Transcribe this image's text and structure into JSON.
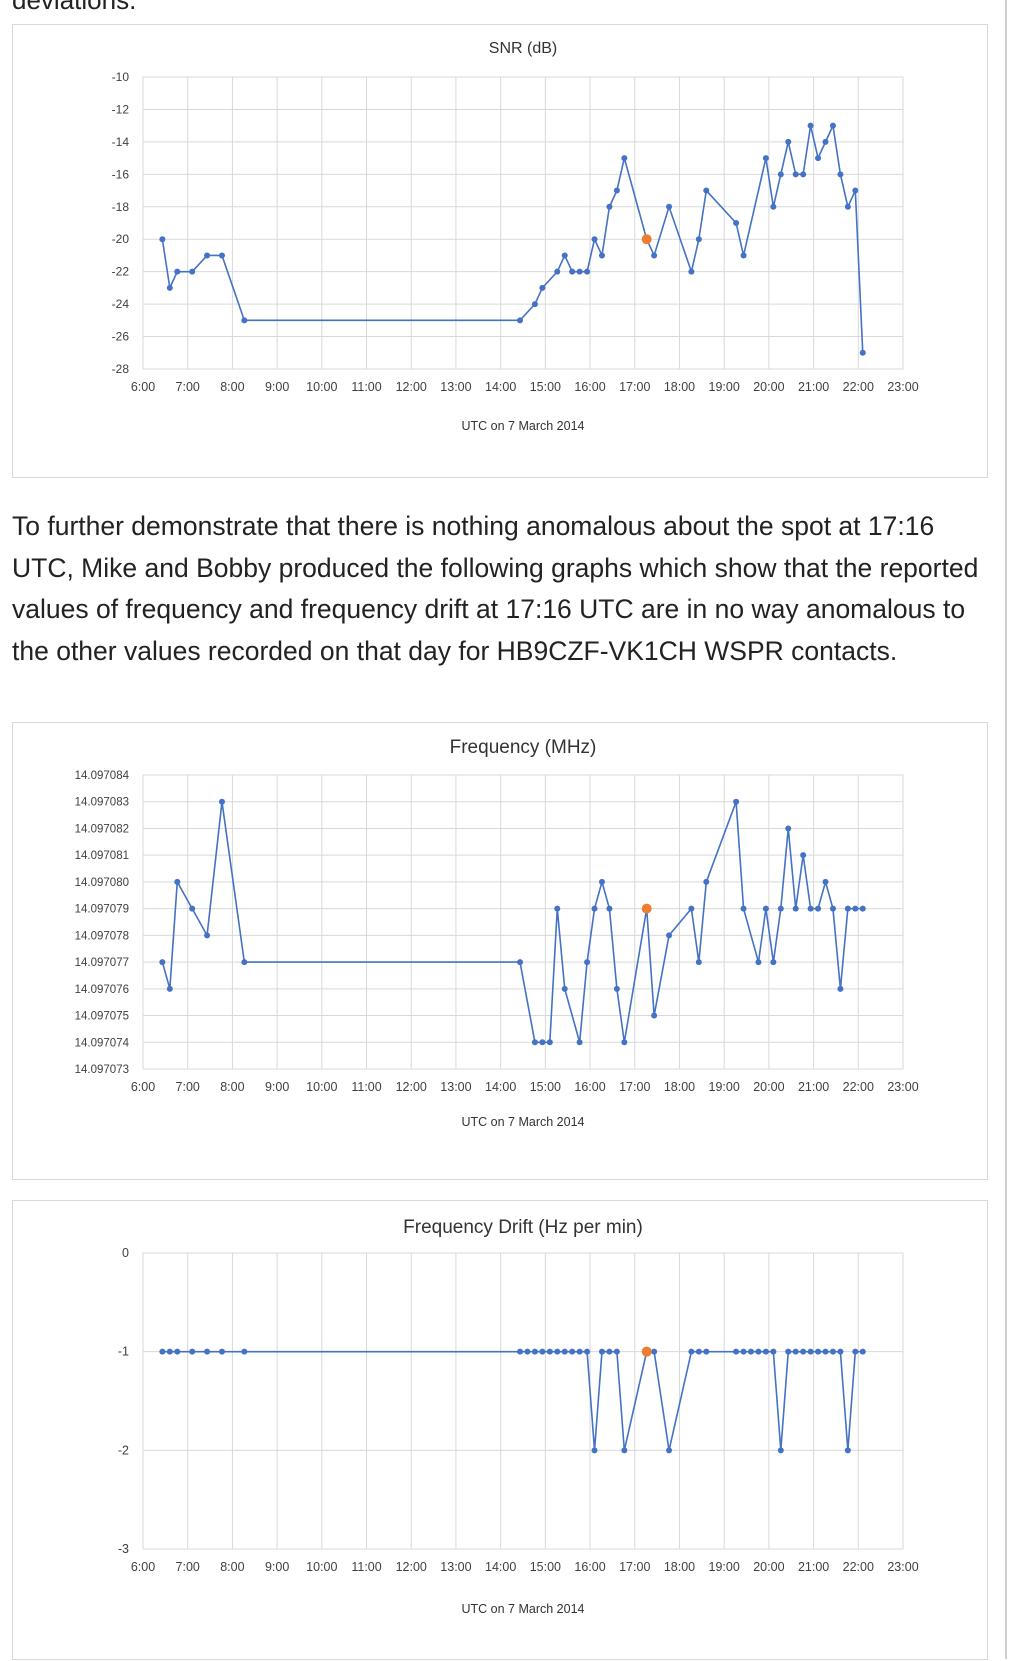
{
  "page": {
    "top_fragment": "deviations.",
    "paragraph": "To further demonstrate that there is nothing anomalous about the spot at 17:16 UTC, Mike and Bobby produced the following graphs which show that the reported values of frequency and frequency drift at 17:16 UTC are in no way anomalous to the other values recorded on that day for HB9CZF-VK1CH WSPR contacts."
  },
  "colors": {
    "series": "#4472c4",
    "highlight": "#ed7d31",
    "grid": "#d9d9d9",
    "axis_text": "#404040"
  },
  "chart_data": [
    {
      "type": "line",
      "title": "SNR (dB)",
      "xlabel": "UTC on 7 March 2014",
      "ylabel": "",
      "x_ticks": [
        "6:00",
        "7:00",
        "8:00",
        "9:00",
        "10:00",
        "11:00",
        "12:00",
        "13:00",
        "14:00",
        "15:00",
        "16:00",
        "17:00",
        "18:00",
        "19:00",
        "20:00",
        "21:00",
        "22:00",
        "23:00"
      ],
      "y_ticks": [
        "-10",
        "-12",
        "-14",
        "-16",
        "-18",
        "-20",
        "-22",
        "-24",
        "-26",
        "-28"
      ],
      "xlim": [
        "6:00",
        "23:00"
      ],
      "ylim": [
        -28,
        -10
      ],
      "grid": true,
      "legend": "none",
      "highlight_point": {
        "x": "17:16",
        "y": -20
      },
      "series": [
        {
          "x": [
            "6:26",
            "6:36",
            "6:46",
            "7:06",
            "7:26",
            "7:46",
            "8:16",
            "14:26",
            "14:46",
            "14:56",
            "15:16",
            "15:26",
            "15:36",
            "15:46",
            "15:56",
            "16:06",
            "16:16",
            "16:26",
            "16:36",
            "16:46",
            "17:16",
            "17:26",
            "17:46",
            "18:16",
            "18:26",
            "18:36",
            "19:16",
            "19:26",
            "19:56",
            "20:06",
            "20:16",
            "20:26",
            "20:36",
            "20:46",
            "20:56",
            "21:06",
            "21:16",
            "21:26",
            "21:36",
            "21:46",
            "21:56",
            "22:06"
          ],
          "y": [
            -20,
            -23,
            -22,
            -22,
            -21,
            -21,
            -25,
            -25,
            -24,
            -23,
            -22,
            -21,
            -22,
            -22,
            -22,
            -20,
            -21,
            -18,
            -17,
            -15,
            -20,
            -21,
            -18,
            -22,
            -20,
            -17,
            -19,
            -21,
            -15,
            -18,
            -16,
            -14,
            -16,
            -16,
            -13,
            -15,
            -14,
            -13,
            -16,
            -18,
            -17,
            -27
          ]
        }
      ]
    },
    {
      "type": "line",
      "title": "Frequency (MHz)",
      "xlabel": "UTC on 7 March 2014",
      "ylabel": "",
      "x_ticks": [
        "6:00",
        "7:00",
        "8:00",
        "9:00",
        "10:00",
        "11:00",
        "12:00",
        "13:00",
        "14:00",
        "15:00",
        "16:00",
        "17:00",
        "18:00",
        "19:00",
        "20:00",
        "21:00",
        "22:00",
        "23:00"
      ],
      "y_ticks": [
        "14.097084",
        "14.097083",
        "14.097082",
        "14.097081",
        "14.097080",
        "14.097079",
        "14.097078",
        "14.097077",
        "14.097076",
        "14.097075",
        "14.097074",
        "14.097073"
      ],
      "xlim": [
        "6:00",
        "23:00"
      ],
      "ylim": [
        14.097073,
        14.097084
      ],
      "grid": true,
      "legend": "none",
      "highlight_point": {
        "x": "17:16",
        "y": 14.097079
      },
      "series": [
        {
          "x": [
            "6:26",
            "6:36",
            "6:46",
            "7:06",
            "7:26",
            "7:46",
            "8:16",
            "14:26",
            "14:46",
            "14:56",
            "15:06",
            "15:16",
            "15:26",
            "15:46",
            "15:56",
            "16:06",
            "16:16",
            "16:26",
            "16:36",
            "16:46",
            "17:16",
            "17:26",
            "17:46",
            "18:16",
            "18:26",
            "18:36",
            "19:16",
            "19:26",
            "19:46",
            "19:56",
            "20:06",
            "20:16",
            "20:26",
            "20:36",
            "20:46",
            "20:56",
            "21:06",
            "21:16",
            "21:26",
            "21:36",
            "21:46",
            "21:56",
            "22:06"
          ],
          "y": [
            14.097077,
            14.097076,
            14.09708,
            14.097079,
            14.097078,
            14.097083,
            14.097077,
            14.097077,
            14.097074,
            14.097074,
            14.097074,
            14.097079,
            14.097076,
            14.097074,
            14.097077,
            14.097079,
            14.09708,
            14.097079,
            14.097076,
            14.097074,
            14.097079,
            14.097075,
            14.097078,
            14.097079,
            14.097077,
            14.09708,
            14.097083,
            14.097079,
            14.097077,
            14.097079,
            14.097077,
            14.097079,
            14.097082,
            14.097079,
            14.097081,
            14.097079,
            14.097079,
            14.09708,
            14.097079,
            14.097076,
            14.097079,
            14.097079,
            14.097079
          ]
        }
      ]
    },
    {
      "type": "line",
      "title": "Frequency Drift (Hz per min)",
      "xlabel": "UTC on 7 March 2014",
      "ylabel": "",
      "x_ticks": [
        "6:00",
        "7:00",
        "8:00",
        "9:00",
        "10:00",
        "11:00",
        "12:00",
        "13:00",
        "14:00",
        "15:00",
        "16:00",
        "17:00",
        "18:00",
        "19:00",
        "20:00",
        "21:00",
        "22:00",
        "23:00"
      ],
      "y_ticks": [
        "0",
        "-1",
        "-2",
        "-3"
      ],
      "xlim": [
        "6:00",
        "23:00"
      ],
      "ylim": [
        -3,
        0
      ],
      "grid": true,
      "legend": "none",
      "highlight_point": {
        "x": "17:16",
        "y": -1
      },
      "series": [
        {
          "x": [
            "6:26",
            "6:36",
            "6:46",
            "7:06",
            "7:26",
            "7:46",
            "8:16",
            "14:26",
            "14:36",
            "14:46",
            "14:56",
            "15:06",
            "15:16",
            "15:26",
            "15:36",
            "15:46",
            "15:56",
            "16:06",
            "16:16",
            "16:26",
            "16:36",
            "16:46",
            "17:16",
            "17:26",
            "17:46",
            "18:16",
            "18:26",
            "18:36",
            "19:16",
            "19:26",
            "19:36",
            "19:46",
            "19:56",
            "20:06",
            "20:16",
            "20:26",
            "20:36",
            "20:46",
            "20:56",
            "21:06",
            "21:16",
            "21:26",
            "21:36",
            "21:46",
            "21:56",
            "22:06"
          ],
          "y": [
            -1,
            -1,
            -1,
            -1,
            -1,
            -1,
            -1,
            -1,
            -1,
            -1,
            -1,
            -1,
            -1,
            -1,
            -1,
            -1,
            -1,
            -2,
            -1,
            -1,
            -1,
            -2,
            -1,
            -1,
            -2,
            -1,
            -1,
            -1,
            -1,
            -1,
            -1,
            -1,
            -1,
            -1,
            -2,
            -1,
            -1,
            -1,
            -1,
            -1,
            -1,
            -1,
            -1,
            -2,
            -1,
            -1
          ]
        }
      ]
    }
  ]
}
